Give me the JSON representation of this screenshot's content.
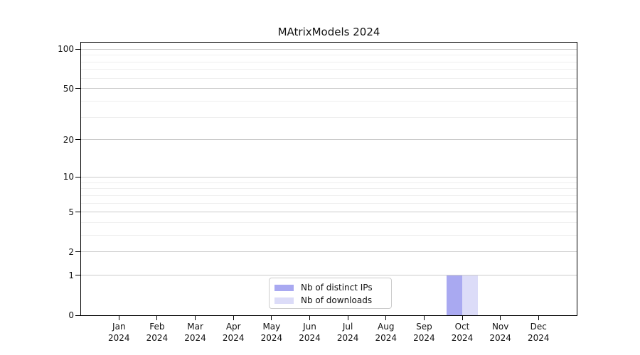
{
  "chart_data": {
    "type": "bar",
    "title": "MAtrixModels 2024",
    "categories": [
      "Jan 2024",
      "Feb 2024",
      "Mar 2024",
      "Apr 2024",
      "May 2024",
      "Jun 2024",
      "Jul 2024",
      "Aug 2024",
      "Sep 2024",
      "Oct 2024",
      "Nov 2024",
      "Dec 2024"
    ],
    "month_labels": [
      "Jan",
      "Feb",
      "Mar",
      "Apr",
      "May",
      "Jun",
      "Jul",
      "Aug",
      "Sep",
      "Oct",
      "Nov",
      "Dec"
    ],
    "year_label": "2024",
    "series": [
      {
        "name": "Nb of distinct IPs",
        "color": "#a9a9f1",
        "values": [
          0,
          0,
          0,
          0,
          0,
          0,
          0,
          0,
          0,
          1,
          0,
          0
        ]
      },
      {
        "name": "Nb of downloads",
        "color": "#dcdcf8",
        "values": [
          0,
          0,
          0,
          0,
          0,
          0,
          0,
          0,
          0,
          1,
          0,
          0
        ]
      }
    ],
    "y_axis": {
      "scale": "log1p",
      "major_ticks": [
        0,
        1,
        2,
        5,
        10,
        20,
        50,
        100
      ],
      "major_tick_labels": [
        "0",
        "1",
        "2",
        "5",
        "10",
        "20",
        "50",
        "100"
      ],
      "minor_ticks": [
        3,
        4,
        6,
        7,
        8,
        9,
        30,
        40,
        60,
        70,
        80,
        90
      ],
      "top_value": 114
    },
    "legend": {
      "position": "lower center",
      "entries": [
        "Nb of distinct IPs",
        "Nb of downloads"
      ]
    },
    "grid": "horizontal",
    "colors": {
      "axis": "#000000",
      "major_grid": "#cbcbcb",
      "minor_grid": "#efefef",
      "distinct_ips_bar": "#a9a9f1",
      "downloads_bar": "#dcdcf8",
      "legend_border": "#cccccc",
      "background": "#ffffff"
    }
  }
}
